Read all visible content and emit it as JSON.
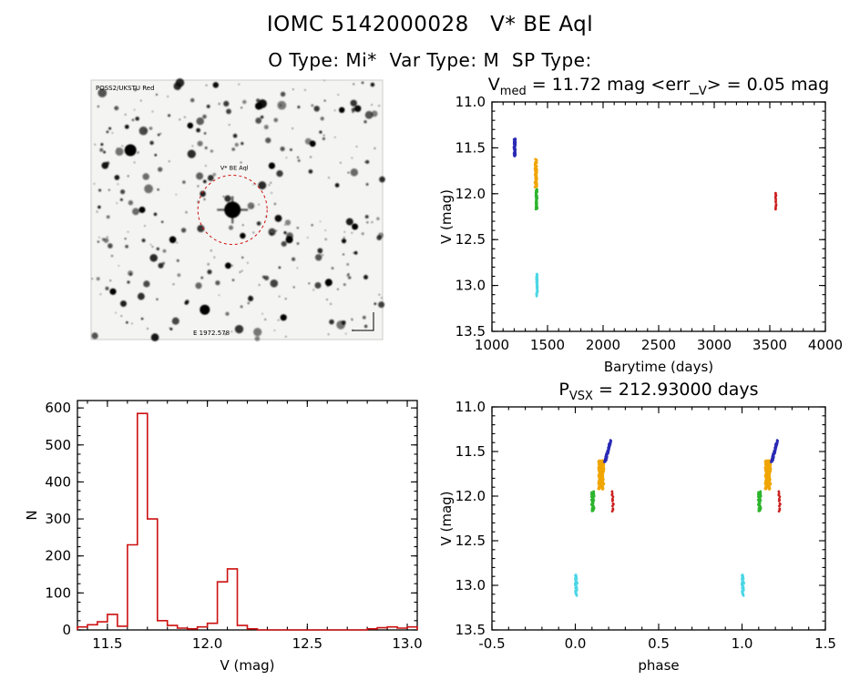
{
  "page": {
    "title": "IOMC 5142000028   V* BE Aql",
    "subtitle": "O Type: Mi*  Var Type: M  SP Type:"
  },
  "finder": {
    "label_top_left": "POSS2/UKSTU Red",
    "label_center": "V* BE Aql",
    "label_bottom": "E 1972.578",
    "label_color_red": "#cc1111",
    "label_color_blue": "#2233bb",
    "circle_color": "#cc1111",
    "seed": 7,
    "star_count": 330,
    "target": [
      0.485,
      0.5
    ],
    "circle_radius": 38,
    "big_stars": [
      [
        0.135,
        0.27,
        6.5
      ],
      [
        0.39,
        0.885,
        5.5
      ],
      [
        0.575,
        0.1,
        4
      ],
      [
        0.68,
        0.615,
        4
      ],
      [
        0.815,
        0.78,
        4
      ],
      [
        0.28,
        0.615,
        3.8
      ],
      [
        0.175,
        0.5,
        3.5
      ],
      [
        0.62,
        0.33,
        3.6
      ],
      [
        0.76,
        0.245,
        3.4
      ],
      [
        0.905,
        0.565,
        3.5
      ],
      [
        0.075,
        0.815,
        3.6
      ],
      [
        0.47,
        0.715,
        3.4
      ],
      [
        0.66,
        0.915,
        3.6
      ],
      [
        0.86,
        0.115,
        3.2
      ],
      [
        0.34,
        0.175,
        3.3
      ],
      [
        0.52,
        0.6,
        3.2
      ]
    ]
  },
  "chart_data": [
    {
      "id": "lightcurve",
      "type": "scatter",
      "title_parts": [
        {
          "t": "V"
        },
        {
          "t": "med",
          "sub": true
        },
        {
          "t": " = 11.72 mag  <err_"
        },
        {
          "t": "V",
          "sub": true
        },
        {
          "t": "> = 0.05 mag"
        }
      ],
      "xlabel": "Barytime (days)",
      "ylabel": "V (mag)",
      "xlim": [
        1000,
        4000
      ],
      "ylim": [
        11.0,
        13.5
      ],
      "y_inverted": true,
      "xticks": [
        1000,
        1500,
        2000,
        2500,
        3000,
        3500,
        4000
      ],
      "yticks": [
        11.0,
        11.5,
        12.0,
        12.5,
        13.0,
        13.5
      ],
      "x_minor": 100,
      "y_minor": 0.1,
      "x_decimals": 0,
      "y_decimals": 1,
      "clusters": [
        {
          "color": "#2a2ab4",
          "x": 1205,
          "x_spread": 14,
          "v_min": 11.4,
          "v_max": 11.59,
          "n": 55,
          "seed": 101
        },
        {
          "color": "#f0a500",
          "x": 1395,
          "x_spread": 18,
          "v_min": 11.63,
          "v_max": 11.93,
          "n": 75,
          "seed": 102
        },
        {
          "color": "#2eb42e",
          "x": 1400,
          "x_spread": 12,
          "v_min": 11.95,
          "v_max": 12.17,
          "n": 50,
          "seed": 103
        },
        {
          "color": "#4cd6e6",
          "x": 1405,
          "x_spread": 9,
          "v_min": 12.88,
          "v_max": 13.11,
          "n": 42,
          "seed": 104
        },
        {
          "color": "#cc2020",
          "x": 3555,
          "x_spread": 7,
          "v_min": 11.99,
          "v_max": 12.17,
          "n": 13,
          "seed": 105
        }
      ]
    },
    {
      "id": "histogram",
      "type": "histogram",
      "xlabel": "V (mag)",
      "ylabel": "N",
      "xlim": [
        11.35,
        13.05
      ],
      "ylim": [
        0,
        620
      ],
      "xticks": [
        11.5,
        12.0,
        12.5,
        13.0
      ],
      "yticks": [
        0,
        100,
        200,
        300,
        400,
        500,
        600
      ],
      "x_minor": 0.1,
      "y_minor": 25,
      "x_decimals": 1,
      "y_decimals": 0,
      "color": "#cc1111",
      "bin_start": 11.35,
      "bin_width": 0.05,
      "counts": [
        8,
        14,
        22,
        42,
        10,
        230,
        585,
        300,
        25,
        12,
        5,
        3,
        8,
        18,
        130,
        165,
        12,
        3,
        0,
        0,
        0,
        0,
        0,
        0,
        0,
        0,
        0,
        0,
        0,
        3,
        6,
        8,
        5,
        8
      ]
    },
    {
      "id": "phase",
      "type": "scatter",
      "title_parts": [
        {
          "t": "P"
        },
        {
          "t": "VSX",
          "sub": true
        },
        {
          "t": " = 212.93000 days"
        }
      ],
      "xlabel": "phase",
      "ylabel": "V (mag)",
      "xlim": [
        -0.5,
        1.5
      ],
      "ylim": [
        11.0,
        13.5
      ],
      "y_inverted": true,
      "xticks": [
        -0.5,
        0.0,
        0.5,
        1.0,
        1.5
      ],
      "yticks": [
        11.0,
        11.5,
        12.0,
        12.5,
        13.0,
        13.5
      ],
      "x_minor": 0.1,
      "y_minor": 0.1,
      "x_decimals": 1,
      "y_decimals": 1,
      "phase_offsets": [
        0,
        1.0
      ],
      "clusters": [
        {
          "color": "#4cd6e6",
          "x": 0.005,
          "x_spread": 0.012,
          "v_min": 12.88,
          "v_max": 13.11,
          "n": 42,
          "seed": 204
        },
        {
          "color": "#2eb42e",
          "x": 0.105,
          "x_spread": 0.018,
          "v_min": 11.95,
          "v_max": 12.17,
          "n": 50,
          "seed": 203
        },
        {
          "color": "#f0a500",
          "x": 0.155,
          "x_spread": 0.032,
          "v_min": 11.6,
          "v_max": 11.92,
          "n": 90,
          "seed": 202,
          "r": 1.6
        },
        {
          "color": "#2a2ab4",
          "x": 0.195,
          "x_spread": 0.035,
          "v_min": 11.38,
          "v_max": 11.62,
          "n": 65,
          "seed": 201,
          "slant": true
        },
        {
          "color": "#cc2020",
          "x": 0.225,
          "x_spread": 0.01,
          "v_min": 11.95,
          "v_max": 12.17,
          "n": 13,
          "seed": 205
        }
      ]
    }
  ]
}
